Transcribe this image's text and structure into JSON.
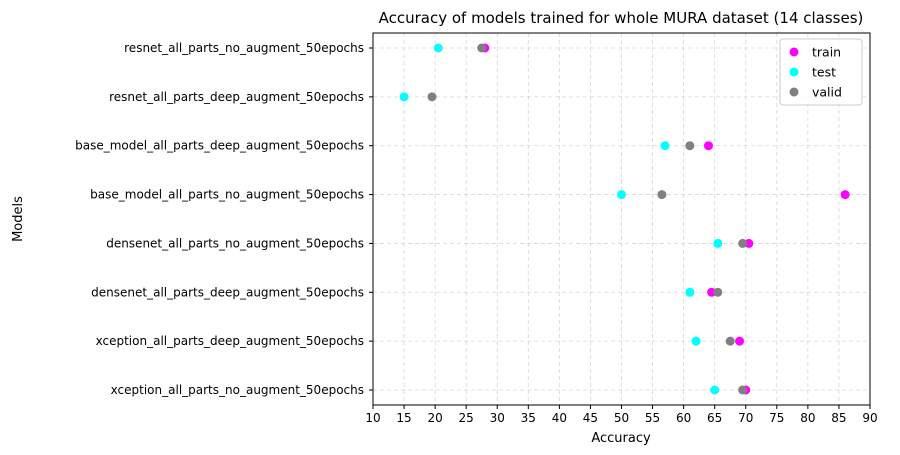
{
  "chart_data": {
    "type": "scatter",
    "title": "Accuracy of models trained for whole MURA dataset (14 classes)",
    "xlabel": "Accuracy",
    "ylabel": "Models",
    "xlim": [
      10,
      90
    ],
    "xticks": [
      10,
      15,
      20,
      25,
      30,
      35,
      40,
      45,
      50,
      55,
      60,
      65,
      70,
      75,
      80,
      85,
      90
    ],
    "grid": true,
    "legend_position": "top-right",
    "categories": [
      "resnet_all_parts_no_augment_50epochs",
      "resnet_all_parts_deep_augment_50epochs",
      "base_model_all_parts_deep_augment_50epochs",
      "base_model_all_parts_no_augment_50epochs",
      "densenet_all_parts_no_augment_50epochs",
      "densenet_all_parts_deep_augment_50epochs",
      "xception_all_parts_deep_augment_50epochs",
      "xception_all_parts_no_augment_50epochs"
    ],
    "series": [
      {
        "name": "train",
        "color": "#ff00ff",
        "values": [
          28.0,
          null,
          64.0,
          86.0,
          70.5,
          64.5,
          69.0,
          70.0
        ]
      },
      {
        "name": "test",
        "color": "#00ffff",
        "values": [
          20.5,
          15.0,
          57.0,
          50.0,
          65.5,
          61.0,
          62.0,
          65.0
        ]
      },
      {
        "name": "valid",
        "color": "#808080",
        "values": [
          27.5,
          19.5,
          61.0,
          56.5,
          69.5,
          65.5,
          67.5,
          69.5
        ]
      }
    ]
  }
}
